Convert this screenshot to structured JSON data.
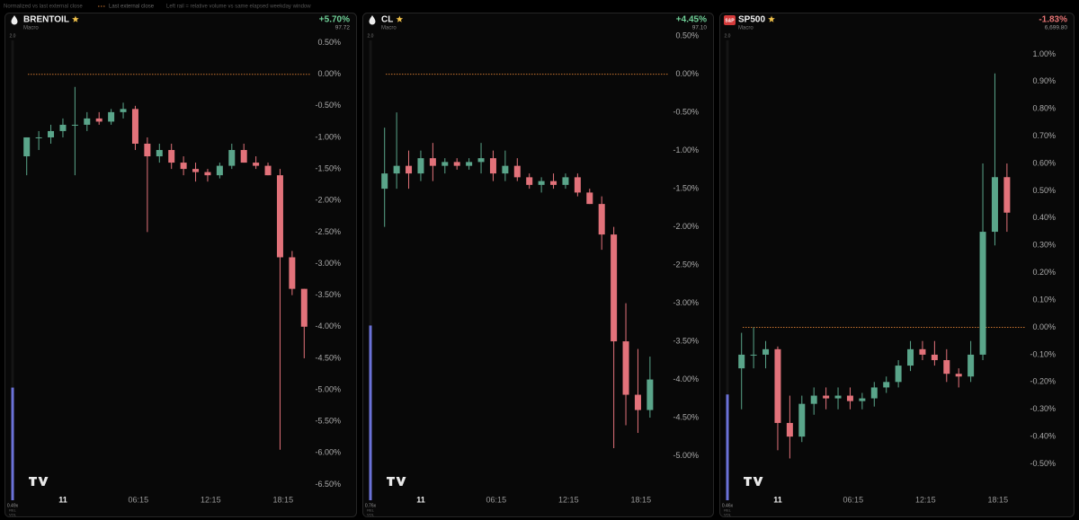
{
  "header": {
    "items": [
      "Normalized vs last external close",
      "Last external close",
      "Left rail = relative volume vs same elapsed weekday window"
    ],
    "ref_color": "#c8732f"
  },
  "panels": [
    {
      "symbol": "BRENTOIL",
      "tag": "Macro",
      "change": "+5.70%",
      "change_color": "#6fcf97",
      "price": "97.72",
      "rail": {
        "max": {
          "value": 2,
          "label": "2.0"
        },
        "rel_vol": {
          "value": 0.49,
          "label": "0.49x"
        },
        "labels": [
          "REL",
          "VOL"
        ],
        "color": "#6b72d8"
      }
    },
    {
      "symbol": "CL",
      "tag": "Macro",
      "change": "+4.45%",
      "change_color": "#6fcf97",
      "price": "97.10",
      "rail": {
        "max": {
          "value": 2,
          "label": "2.0"
        },
        "rel_vol": {
          "value": 0.76,
          "label": "0.76x"
        },
        "labels": [
          "REL",
          "VOL"
        ],
        "color": "#6b72d8"
      }
    },
    {
      "symbol": "SP500",
      "badge": "S&P",
      "tag": "Macro",
      "change": "-1.83%",
      "change_color": "#e57373",
      "price": "6,699.80",
      "rail": {
        "max": {
          "value": 2,
          "label": "2.0"
        },
        "rel_vol": {
          "value": 0.46,
          "label": "0.46x"
        },
        "labels": [
          "REL",
          "VOL"
        ],
        "color": "#6b72d8"
      }
    }
  ],
  "chart_data": [
    {
      "type": "candlestick",
      "up_color": "#5aa58a",
      "down_color": "#e2727a",
      "reference_line": 0,
      "ref_color": "#c8732f",
      "x": [
        -3,
        -2,
        -1,
        0,
        1,
        2,
        3,
        4,
        5,
        6,
        7,
        8,
        9,
        10,
        11,
        12,
        13,
        14,
        15,
        16,
        17,
        18,
        19,
        20
      ],
      "open": [
        -1.3,
        -1.0,
        -1.0,
        -0.9,
        -0.8,
        -0.8,
        -0.7,
        -0.75,
        -0.6,
        -0.55,
        -1.1,
        -1.3,
        -1.2,
        -1.4,
        -1.5,
        -1.55,
        -1.6,
        -1.45,
        -1.2,
        -1.4,
        -1.45,
        -1.6,
        -2.9,
        -3.4
      ],
      "high": [
        -1.0,
        -0.9,
        -0.8,
        -0.7,
        -0.2,
        -0.6,
        -0.6,
        -0.55,
        -0.45,
        -0.5,
        -1.0,
        -1.1,
        -1.1,
        -1.3,
        -1.4,
        -1.5,
        -1.4,
        -1.1,
        -1.1,
        -1.3,
        -1.4,
        -1.5,
        -2.8,
        -3.4
      ],
      "low": [
        -1.6,
        -1.2,
        -1.1,
        -1.0,
        -1.6,
        -0.9,
        -0.8,
        -0.8,
        -0.7,
        -1.2,
        -2.5,
        -1.4,
        -1.5,
        -1.6,
        -1.7,
        -1.7,
        -1.65,
        -1.5,
        -1.4,
        -1.5,
        -1.6,
        -5.95,
        -3.5,
        -4.5
      ],
      "close": [
        -1.0,
        -1.0,
        -0.9,
        -0.8,
        -0.8,
        -0.7,
        -0.75,
        -0.6,
        -0.55,
        -1.1,
        -1.3,
        -1.2,
        -1.4,
        -1.5,
        -1.55,
        -1.6,
        -1.45,
        -1.2,
        -1.4,
        -1.45,
        -1.6,
        -2.9,
        -3.4,
        -4.0
      ],
      "xlim": [
        -3.5,
        20.5
      ],
      "xticks": [
        {
          "value": 0,
          "label": "11"
        },
        {
          "value": 6.25,
          "label": "06:15"
        },
        {
          "value": 12.25,
          "label": "12:15"
        },
        {
          "value": 18.25,
          "label": "18:15"
        }
      ],
      "ylim": [
        -6.65,
        0.75
      ],
      "yticks": [
        {
          "value": 0.5,
          "label": "0.50%"
        },
        {
          "value": 0,
          "label": "0.00%"
        },
        {
          "value": -0.5,
          "label": "-0.50%"
        },
        {
          "value": -1,
          "label": "-1.00%"
        },
        {
          "value": -1.5,
          "label": "-1.50%"
        },
        {
          "value": -2,
          "label": "-2.00%"
        },
        {
          "value": -2.5,
          "label": "-2.50%"
        },
        {
          "value": -3,
          "label": "-3.00%"
        },
        {
          "value": -3.5,
          "label": "-3.50%"
        },
        {
          "value": -4,
          "label": "-4.00%"
        },
        {
          "value": -4.5,
          "label": "-4.50%"
        },
        {
          "value": -5,
          "label": "-5.00%"
        },
        {
          "value": -5.5,
          "label": "-5.50%"
        },
        {
          "value": -6,
          "label": "-6.00%"
        },
        {
          "value": -6.5,
          "label": "-6.50%"
        }
      ]
    },
    {
      "type": "candlestick",
      "up_color": "#5aa58a",
      "down_color": "#e2727a",
      "reference_line": 0,
      "ref_color": "#c8732f",
      "x": [
        -3,
        -2,
        -1,
        0,
        1,
        2,
        3,
        4,
        5,
        6,
        7,
        8,
        9,
        10,
        11,
        12,
        13,
        14,
        15,
        16,
        17,
        18,
        19
      ],
      "open": [
        -1.5,
        -1.3,
        -1.2,
        -1.3,
        -1.1,
        -1.2,
        -1.15,
        -1.2,
        -1.15,
        -1.1,
        -1.3,
        -1.2,
        -1.35,
        -1.45,
        -1.4,
        -1.45,
        -1.35,
        -1.55,
        -1.7,
        -2.1,
        -3.5,
        -4.2,
        -4.4
      ],
      "high": [
        -0.7,
        -0.5,
        -1.0,
        -1.0,
        -0.9,
        -1.1,
        -1.1,
        -1.1,
        -0.9,
        -1.0,
        -1.0,
        -1.1,
        -1.3,
        -1.35,
        -1.3,
        -1.3,
        -1.3,
        -1.5,
        -1.6,
        -2.0,
        -3.0,
        -3.6,
        -3.7
      ],
      "low": [
        -2.0,
        -1.5,
        -1.5,
        -1.4,
        -1.4,
        -1.3,
        -1.25,
        -1.25,
        -1.3,
        -1.4,
        -1.4,
        -1.4,
        -1.5,
        -1.55,
        -1.5,
        -1.5,
        -1.6,
        -1.7,
        -2.3,
        -4.9,
        -4.6,
        -4.7,
        -4.5
      ],
      "close": [
        -1.3,
        -1.2,
        -1.3,
        -1.1,
        -1.2,
        -1.15,
        -1.2,
        -1.15,
        -1.1,
        -1.3,
        -1.2,
        -1.35,
        -1.45,
        -1.4,
        -1.45,
        -1.35,
        -1.55,
        -1.7,
        -2.1,
        -3.5,
        -4.2,
        -4.4,
        -4.0
      ],
      "xlim": [
        -3.5,
        20.5
      ],
      "xticks": [
        {
          "value": 0,
          "label": "11"
        },
        {
          "value": 6.25,
          "label": "06:15"
        },
        {
          "value": 12.25,
          "label": "12:15"
        },
        {
          "value": 18.25,
          "label": "18:15"
        }
      ],
      "ylim": [
        -5.5,
        0.62
      ],
      "yticks": [
        {
          "value": 0.5,
          "label": "0.50%"
        },
        {
          "value": 0,
          "label": "0.00%"
        },
        {
          "value": -0.5,
          "label": "-0.50%"
        },
        {
          "value": -1,
          "label": "-1.00%"
        },
        {
          "value": -1.5,
          "label": "-1.50%"
        },
        {
          "value": -2,
          "label": "-2.00%"
        },
        {
          "value": -2.5,
          "label": "-2.50%"
        },
        {
          "value": -3,
          "label": "-3.00%"
        },
        {
          "value": -3.5,
          "label": "-3.50%"
        },
        {
          "value": -4,
          "label": "-4.00%"
        },
        {
          "value": -4.5,
          "label": "-4.50%"
        },
        {
          "value": -5,
          "label": "-5.00%"
        }
      ]
    },
    {
      "type": "candlestick",
      "up_color": "#5aa58a",
      "down_color": "#e2727a",
      "reference_line": 0,
      "ref_color": "#c8732f",
      "x": [
        -3,
        -2,
        -1,
        0,
        1,
        2,
        3,
        4,
        5,
        6,
        7,
        8,
        9,
        10,
        11,
        12,
        13,
        14,
        15,
        16,
        17,
        18,
        19
      ],
      "open": [
        -0.15,
        -0.1,
        -0.1,
        -0.08,
        -0.35,
        -0.4,
        -0.28,
        -0.25,
        -0.26,
        -0.25,
        -0.27,
        -0.26,
        -0.22,
        -0.2,
        -0.14,
        -0.08,
        -0.1,
        -0.12,
        -0.17,
        -0.18,
        -0.1,
        0.35,
        0.55
      ],
      "high": [
        -0.02,
        0,
        -0.05,
        -0.07,
        -0.25,
        -0.25,
        -0.22,
        -0.22,
        -0.22,
        -0.22,
        -0.24,
        -0.2,
        -0.18,
        -0.12,
        -0.05,
        -0.05,
        -0.05,
        -0.08,
        -0.15,
        -0.05,
        0.6,
        0.93,
        0.6
      ],
      "low": [
        -0.3,
        -0.15,
        -0.15,
        -0.45,
        -0.48,
        -0.42,
        -0.32,
        -0.3,
        -0.3,
        -0.3,
        -0.3,
        -0.29,
        -0.24,
        -0.22,
        -0.16,
        -0.12,
        -0.14,
        -0.2,
        -0.22,
        -0.2,
        -0.12,
        0.3,
        0.35
      ],
      "close": [
        -0.1,
        -0.1,
        -0.08,
        -0.35,
        -0.4,
        -0.28,
        -0.25,
        -0.26,
        -0.25,
        -0.27,
        -0.26,
        -0.22,
        -0.2,
        -0.14,
        -0.08,
        -0.1,
        -0.12,
        -0.17,
        -0.18,
        -0.1,
        0.35,
        0.55,
        0.42
      ],
      "xlim": [
        -3.5,
        20.5
      ],
      "xticks": [
        {
          "value": 0,
          "label": "11"
        },
        {
          "value": 6.25,
          "label": "06:15"
        },
        {
          "value": 12.25,
          "label": "12:15"
        },
        {
          "value": 18.25,
          "label": "18:15"
        }
      ],
      "ylim": [
        -0.61,
        1.1
      ],
      "yticks": [
        {
          "value": 1,
          "label": "1.00%"
        },
        {
          "value": 0.9,
          "label": "0.90%"
        },
        {
          "value": 0.8,
          "label": "0.80%"
        },
        {
          "value": 0.7,
          "label": "0.70%"
        },
        {
          "value": 0.6,
          "label": "0.60%"
        },
        {
          "value": 0.5,
          "label": "0.50%"
        },
        {
          "value": 0.4,
          "label": "0.40%"
        },
        {
          "value": 0.3,
          "label": "0.30%"
        },
        {
          "value": 0.2,
          "label": "0.20%"
        },
        {
          "value": 0.1,
          "label": "0.10%"
        },
        {
          "value": 0,
          "label": "0.00%"
        },
        {
          "value": -0.1,
          "label": "-0.10%"
        },
        {
          "value": -0.2,
          "label": "-0.20%"
        },
        {
          "value": -0.3,
          "label": "-0.30%"
        },
        {
          "value": -0.4,
          "label": "-0.40%"
        },
        {
          "value": -0.5,
          "label": "-0.50%"
        }
      ]
    }
  ]
}
